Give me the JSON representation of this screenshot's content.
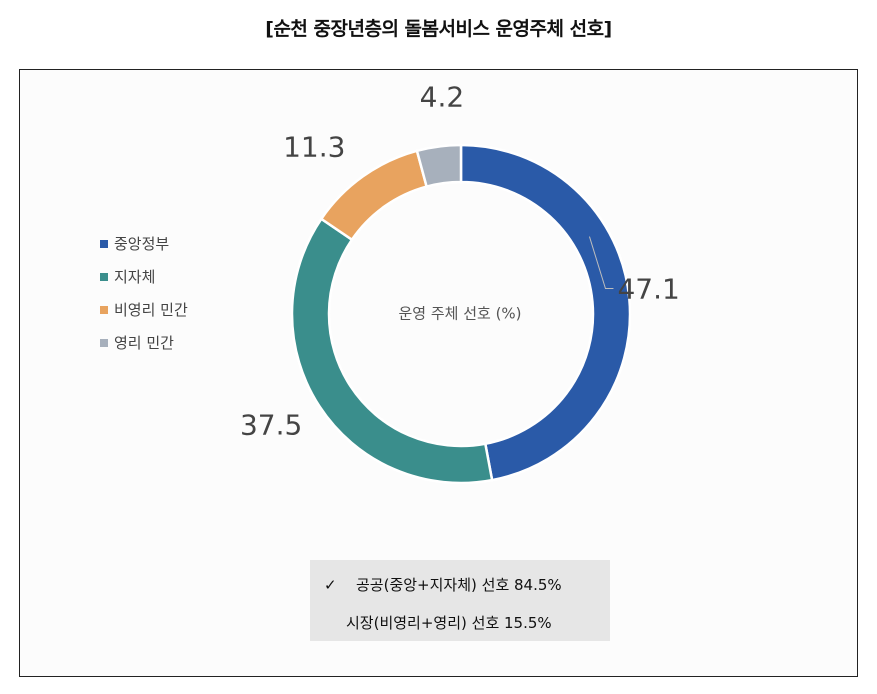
{
  "page_title": "[순천 중장년층의 돌봄서비스 운영주체 선호]",
  "colors": {
    "central_gov": "#2a5aa8",
    "local_gov": "#3a8e8c",
    "nonprofit": "#e8a35f",
    "forprofit": "#a7b0bc"
  },
  "chart_data": {
    "type": "pie",
    "donut": true,
    "center_label": "운영 주체 선호 (%)",
    "categories": [
      "중앙정부",
      "지자체",
      "비영리 민간",
      "영리 민간"
    ],
    "values": [
      47.1,
      37.5,
      11.3,
      4.2
    ],
    "value_labels": [
      "47.1",
      "37.5",
      "11.3",
      "4.2"
    ],
    "colors": [
      "#2a5aa8",
      "#3a8e8c",
      "#e8a35f",
      "#a7b0bc"
    ],
    "legend_position": "left",
    "start": "top",
    "direction": "clockwise"
  },
  "summary": {
    "check_mark": "✓",
    "line1": "공공(중앙+지자체) 선호 84.5%",
    "line2": "시장(비영리+영리) 선호 15.5%"
  }
}
